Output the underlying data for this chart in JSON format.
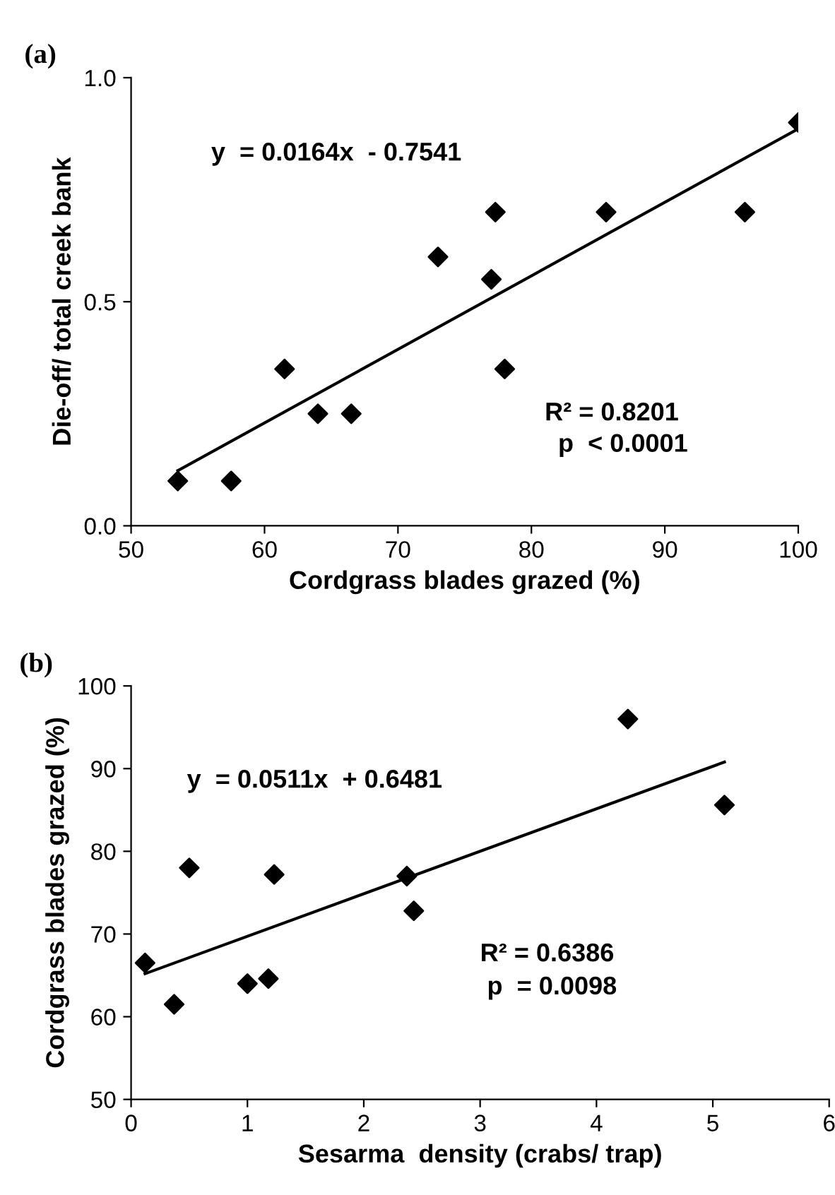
{
  "chart_data": [
    {
      "type": "scatter",
      "title": "(a)",
      "xlabel": "Cordgrass blades grazed (%)",
      "ylabel": "Die-off/ total creek bank",
      "xlim": [
        50,
        100
      ],
      "xticks": [
        50,
        60,
        70,
        80,
        90,
        100
      ],
      "ylim": [
        0,
        1
      ],
      "yticks": [
        {
          "value": 0,
          "label": "0.0"
        },
        {
          "value": 0.5,
          "label": "0.5"
        },
        {
          "value": 1,
          "label": "1.0"
        }
      ],
      "grid": false,
      "series": [
        {
          "marker": "diamond",
          "color": "#000000",
          "x": [
            53.5,
            57.5,
            61.5,
            64,
            66.5,
            73,
            77,
            77.3,
            78,
            85.6,
            96,
            100
          ],
          "values": [
            0.1,
            0.1,
            0.35,
            0.25,
            0.25,
            0.6,
            0.55,
            0.7,
            0.35,
            0.7,
            0.7,
            0.9
          ]
        },
        {
          "type": "line",
          "marker": "none",
          "color": "#000000",
          "x": [
            53.5,
            100
          ],
          "values": [
            0.123,
            0.886
          ]
        }
      ],
      "annotations": [
        "y  = 0.0164x  - 0.7541",
        "R² = 0.8201",
        "p  < 0.0001"
      ]
    },
    {
      "type": "scatter",
      "title": "(b)",
      "xlabel": "Sesarma  density (crabs/ trap)",
      "ylabel": "Cordgrass blades grazed (%)",
      "xlim": [
        0,
        6
      ],
      "xticks": [
        0,
        1,
        2,
        3,
        4,
        5,
        6
      ],
      "ylim": [
        50,
        100
      ],
      "yticks": [
        50,
        60,
        70,
        80,
        90,
        100
      ],
      "grid": false,
      "series": [
        {
          "marker": "diamond",
          "color": "#000000",
          "x": [
            0.12,
            0.37,
            0.5,
            1.0,
            1.18,
            1.23,
            2.37,
            2.43,
            4.27,
            5.1
          ],
          "values": [
            66.5,
            61.5,
            78,
            64,
            64.6,
            77.2,
            77,
            72.8,
            96,
            85.6
          ]
        },
        {
          "type": "line",
          "marker": "none",
          "color": "#000000",
          "x": [
            0.12,
            5.1
          ],
          "values": [
            65.2,
            90.8
          ]
        }
      ],
      "annotations": [
        "y  = 0.0511x  + 0.6481",
        "R² = 0.6386",
        "p  = 0.0098"
      ]
    }
  ]
}
